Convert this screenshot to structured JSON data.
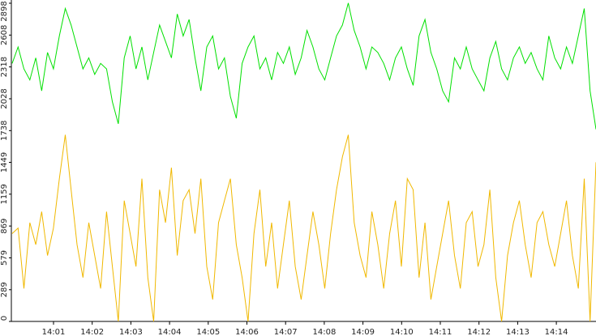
{
  "chart_data": {
    "type": "line",
    "ylim": [
      0,
      2898
    ],
    "yticks": [
      0,
      289,
      579,
      869,
      1159,
      1449,
      1738,
      2028,
      2318,
      2608,
      2898
    ],
    "x_tick_labels": [
      "14:01",
      "14:02",
      "14:03",
      "14:04",
      "14:05",
      "14:06",
      "14:07",
      "14:08",
      "14:09",
      "14:10",
      "14:11",
      "14:12",
      "14:13",
      "14:14"
    ],
    "series": [
      {
        "color": "#00e000",
        "values": [
          2350,
          2500,
          2300,
          2200,
          2400,
          2100,
          2450,
          2300,
          2600,
          2850,
          2700,
          2500,
          2300,
          2400,
          2250,
          2350,
          2300,
          2000,
          1800,
          2400,
          2600,
          2300,
          2500,
          2200,
          2450,
          2700,
          2550,
          2400,
          2800,
          2600,
          2750,
          2400,
          2100,
          2500,
          2600,
          2300,
          2400,
          2050,
          1850,
          2350,
          2500,
          2600,
          2300,
          2400,
          2200,
          2450,
          2350,
          2500,
          2250,
          2400,
          2650,
          2500,
          2300,
          2200,
          2400,
          2600,
          2700,
          2900,
          2650,
          2500,
          2300,
          2500,
          2450,
          2350,
          2200,
          2400,
          2500,
          2300,
          2150,
          2600,
          2750,
          2450,
          2300,
          2100,
          2000,
          2400,
          2300,
          2500,
          2300,
          2200,
          2100,
          2400,
          2550,
          2300,
          2200,
          2400,
          2500,
          2350,
          2450,
          2300,
          2200,
          2600,
          2400,
          2300,
          2500,
          2350,
          2600,
          2850,
          2100,
          1750
        ]
      },
      {
        "color": "#f0b800",
        "values": [
          800,
          850,
          300,
          900,
          700,
          1000,
          600,
          850,
          1300,
          1700,
          1200,
          700,
          400,
          900,
          600,
          300,
          1000,
          500,
          0,
          1100,
          800,
          500,
          1300,
          400,
          0,
          1200,
          900,
          1400,
          600,
          1100,
          1200,
          800,
          1300,
          500,
          200,
          900,
          1100,
          1300,
          700,
          400,
          0,
          800,
          1200,
          500,
          900,
          300,
          700,
          1100,
          500,
          200,
          600,
          1000,
          700,
          300,
          800,
          1200,
          1500,
          1700,
          900,
          600,
          400,
          1000,
          700,
          300,
          800,
          1100,
          500,
          1300,
          1200,
          400,
          900,
          200,
          500,
          800,
          1100,
          600,
          300,
          900,
          1000,
          500,
          700,
          1200,
          400,
          0,
          600,
          900,
          1100,
          700,
          400,
          900,
          1000,
          700,
          500,
          800,
          1100,
          600,
          300,
          1300,
          0,
          1450
        ]
      }
    ]
  }
}
